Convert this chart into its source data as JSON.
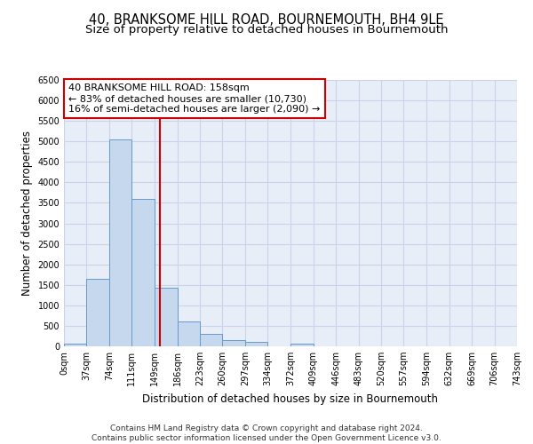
{
  "title": "40, BRANKSOME HILL ROAD, BOURNEMOUTH, BH4 9LE",
  "subtitle": "Size of property relative to detached houses in Bournemouth",
  "xlabel": "Distribution of detached houses by size in Bournemouth",
  "ylabel": "Number of detached properties",
  "bar_edges": [
    0,
    37,
    74,
    111,
    149,
    186,
    223,
    260,
    297,
    334,
    372,
    409,
    446,
    483,
    520,
    557,
    594,
    632,
    669,
    706,
    743
  ],
  "bar_heights": [
    70,
    1650,
    5050,
    3600,
    1420,
    610,
    300,
    155,
    100,
    0,
    65,
    0,
    0,
    0,
    0,
    0,
    0,
    0,
    0,
    0
  ],
  "bar_color": "#c5d8ee",
  "bar_edge_color": "#6699cc",
  "property_size": 158,
  "vline_color": "#cc0000",
  "annotation_text": "40 BRANKSOME HILL ROAD: 158sqm\n← 83% of detached houses are smaller (10,730)\n16% of semi-detached houses are larger (2,090) →",
  "annotation_box_color": "#ffffff",
  "annotation_box_edge": "#cc0000",
  "ylim": [
    0,
    6500
  ],
  "yticks": [
    0,
    500,
    1000,
    1500,
    2000,
    2500,
    3000,
    3500,
    4000,
    4500,
    5000,
    5500,
    6000,
    6500
  ],
  "tick_labels": [
    "0sqm",
    "37sqm",
    "74sqm",
    "111sqm",
    "149sqm",
    "186sqm",
    "223sqm",
    "260sqm",
    "297sqm",
    "334sqm",
    "372sqm",
    "409sqm",
    "446sqm",
    "483sqm",
    "520sqm",
    "557sqm",
    "594sqm",
    "632sqm",
    "669sqm",
    "706sqm",
    "743sqm"
  ],
  "grid_color": "#c8d4e8",
  "bg_color": "#e8eef8",
  "footer": "Contains HM Land Registry data © Crown copyright and database right 2024.\nContains public sector information licensed under the Open Government Licence v3.0.",
  "title_fontsize": 10.5,
  "subtitle_fontsize": 9.5,
  "xlabel_fontsize": 8.5,
  "ylabel_fontsize": 8.5,
  "tick_fontsize": 7,
  "footer_fontsize": 6.5,
  "annotation_fontsize": 8
}
